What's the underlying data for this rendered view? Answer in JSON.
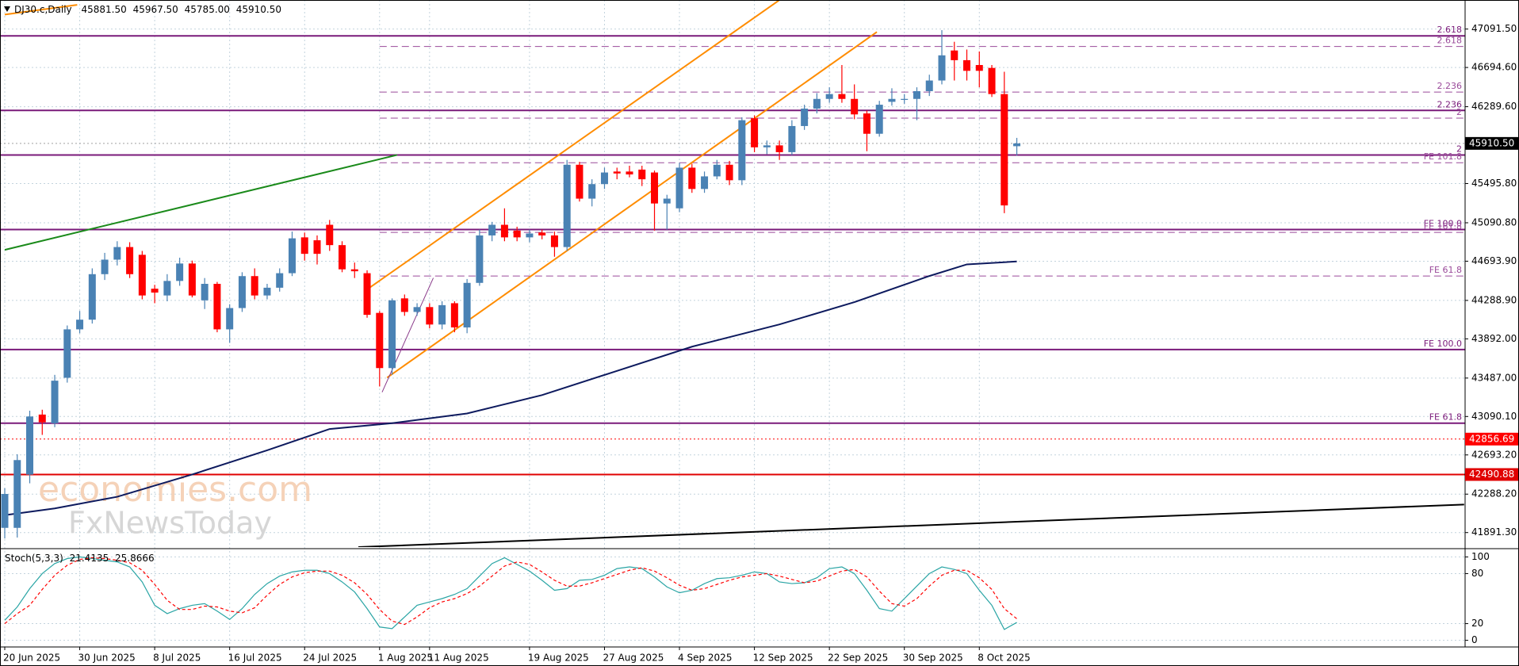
{
  "chart_data": [
    {
      "type": "candlestick",
      "symbol": "DJ30.c,Daily",
      "ohlc_labels": [
        "45881.50",
        "45967.50",
        "45785.00",
        "45910.50"
      ],
      "categories": [
        "20 Jun 2025",
        null,
        null,
        null,
        null,
        null,
        "30 Jun 2025",
        null,
        null,
        null,
        null,
        null,
        "8 Jul 2025",
        null,
        null,
        null,
        null,
        null,
        "16 Jul 2025",
        null,
        null,
        null,
        null,
        null,
        "24 Jul 2025",
        null,
        null,
        null,
        null,
        null,
        "1 Aug 2025",
        null,
        null,
        null,
        "11 Aug 2025",
        null,
        null,
        null,
        null,
        null,
        null,
        null,
        "19 Aug 2025",
        null,
        null,
        null,
        null,
        null,
        "27 Aug 2025",
        null,
        null,
        null,
        null,
        null,
        "4 Sep 2025",
        null,
        null,
        null,
        null,
        null,
        "12 Sep 2025",
        null,
        null,
        null,
        null,
        null,
        "22 Sep 2025",
        null,
        null,
        null,
        null,
        null,
        "30 Sep 2025",
        null,
        null,
        null,
        null,
        null,
        "8 Oct 2025",
        null,
        null,
        null
      ],
      "open": [
        41940,
        41940,
        42490,
        43110,
        43020,
        43490,
        43990,
        44090,
        44560,
        44710,
        44840,
        44760,
        44410,
        44340,
        44490,
        44670,
        44290,
        44460,
        43990,
        44210,
        44540,
        44340,
        44420,
        44570,
        44940,
        44910,
        45070,
        44860,
        44610,
        44570,
        44160,
        43590,
        44310,
        44170,
        44220,
        44040,
        44260,
        44010,
        44470,
        44960,
        45070,
        45010,
        44940,
        44990,
        44960,
        44840,
        45690,
        45340,
        45490,
        45620,
        45620,
        45640,
        45610,
        45290,
        45240,
        45660,
        45440,
        45570,
        45690,
        45530,
        46170,
        45870,
        45890,
        45820,
        46090,
        46270,
        46370,
        46420,
        46370,
        46220,
        46010,
        46340,
        46360,
        46370,
        46450,
        46560,
        46870,
        46770,
        46720,
        46690,
        46420,
        45881.5
      ],
      "high": [
        42350,
        42700,
        43150,
        43160,
        43520,
        44030,
        44180,
        44620,
        44780,
        44900,
        44890,
        44800,
        44450,
        44560,
        44730,
        44700,
        44520,
        44480,
        44250,
        44580,
        44620,
        44460,
        44620,
        45000,
        44990,
        44960,
        45120,
        44900,
        44680,
        44600,
        44180,
        44310,
        44350,
        44260,
        44260,
        44280,
        44280,
        44510,
        45020,
        45100,
        45240,
        45050,
        45020,
        45020,
        45000,
        45740,
        45720,
        45540,
        45660,
        45660,
        45680,
        45680,
        45630,
        45380,
        45710,
        45700,
        45620,
        45740,
        45730,
        46180,
        46200,
        45940,
        45940,
        46150,
        46310,
        46430,
        46490,
        46720,
        46520,
        46250,
        46350,
        46480,
        46420,
        46490,
        46620,
        47080,
        46960,
        46880,
        46860,
        46720,
        46650,
        45967.5
      ],
      "low": [
        41830,
        41840,
        42400,
        42900,
        42980,
        43440,
        43950,
        44050,
        44500,
        44650,
        44520,
        44300,
        44260,
        44280,
        44440,
        44320,
        44200,
        43960,
        43850,
        44170,
        44300,
        44300,
        44380,
        44540,
        44700,
        44660,
        44800,
        44580,
        44520,
        44110,
        43400,
        43520,
        44130,
        44130,
        44000,
        43990,
        43960,
        43950,
        44440,
        44900,
        44900,
        44900,
        44890,
        44920,
        44740,
        44800,
        45310,
        45260,
        45440,
        45540,
        45560,
        45470,
        45010,
        45020,
        45200,
        45400,
        45400,
        45540,
        45480,
        45480,
        45820,
        45800,
        45740,
        45790,
        46050,
        46220,
        46330,
        46330,
        46160,
        45830,
        45980,
        46300,
        46320,
        46150,
        46400,
        46520,
        46560,
        46560,
        46490,
        46390,
        45190,
        45785
      ],
      "close": [
        42290,
        42640,
        43090,
        43030,
        43460,
        43990,
        44090,
        44560,
        44710,
        44840,
        44560,
        44340,
        44370,
        44490,
        44670,
        44340,
        44460,
        43990,
        44210,
        44540,
        44340,
        44420,
        44570,
        44930,
        44770,
        44770,
        44860,
        44610,
        44590,
        44140,
        43590,
        44290,
        44170,
        44220,
        44040,
        44240,
        44010,
        44470,
        44960,
        45070,
        44940,
        44940,
        44980,
        44960,
        44840,
        45690,
        45340,
        45490,
        45610,
        45600,
        45590,
        45540,
        45290,
        45340,
        45660,
        45440,
        45570,
        45690,
        45530,
        46150,
        45870,
        45890,
        45820,
        46090,
        46270,
        46370,
        46420,
        46370,
        46210,
        46010,
        46310,
        46370,
        46370,
        46450,
        46560,
        46820,
        46770,
        46660,
        46660,
        46420,
        45270,
        45910.5
      ],
      "up_color": "#4a82b4",
      "down_color": "#ff0000",
      "ylim": [
        41741.5,
        47391.5
      ],
      "yticks": [
        {
          "value": 47091.5,
          "label": "47091.50"
        },
        {
          "value": 46694.6,
          "label": "46694.60"
        },
        {
          "value": 46289.6,
          "label": "46289.60"
        },
        {
          "value": 45495.8,
          "label": "45495.80"
        },
        {
          "value": 45090.8,
          "label": "45090.80"
        },
        {
          "value": 44693.9,
          "label": "44693.90"
        },
        {
          "value": 44288.9,
          "label": "44288.90"
        },
        {
          "value": 43892,
          "label": "43892.00"
        },
        {
          "value": 43487,
          "label": "43487.00"
        },
        {
          "value": 43090.1,
          "label": "43090.10"
        },
        {
          "value": 42693.2,
          "label": "42693.20"
        },
        {
          "value": 42288.2,
          "label": "42288.20"
        },
        {
          "value": 41891.3,
          "label": "41891.30"
        }
      ],
      "grid": true,
      "moving_average": {
        "color": "#0d1a5e",
        "x": [
          0,
          4,
          9,
          15,
          21,
          26,
          31,
          37,
          43,
          49,
          55,
          62,
          68,
          74,
          77,
          81
        ],
        "values": [
          42071,
          42141,
          42261,
          42491,
          42741,
          42961,
          43021,
          43121,
          43311,
          43561,
          43811,
          44041,
          44271,
          44541,
          44661,
          44691
        ]
      },
      "trendlines": [
        {
          "color": "#ff8c00",
          "x": [
            29.1,
            62
          ],
          "values": [
            44411,
            47391
          ]
        },
        {
          "color": "#ff8c00",
          "x": [
            30.6,
            69.8
          ],
          "values": [
            43491,
            47061
          ]
        },
        {
          "color": "#ff8c00",
          "x": [
            0,
            5.8
          ],
          "values": [
            47241,
            47341
          ]
        },
        {
          "color": "#1a8a1a",
          "x": [
            0,
            31.4
          ],
          "values": [
            44811,
            45791
          ]
        },
        {
          "color": "#000000",
          "x": [
            28.3,
            116.8
          ],
          "values": [
            41741,
            42181
          ]
        },
        {
          "color": "#8a3a8a",
          "x": [
            30.2,
            34.3
          ],
          "values": [
            43341,
            44521
          ]
        }
      ],
      "levels": [
        {
          "value": 47021,
          "label": "2.618",
          "style": "solid",
          "color": "#7a1a7a"
        },
        {
          "value": 46911,
          "label": "2.618",
          "style": "dashed",
          "color": "#9a4a9a",
          "x_start": 30
        },
        {
          "value": 46441,
          "label": "2.236",
          "style": "dashed",
          "color": "#9a4a9a",
          "x_start": 30
        },
        {
          "value": 46251,
          "label": "2.236",
          "style": "solid",
          "color": "#7a1a7a"
        },
        {
          "value": 46171,
          "label": "2",
          "style": "dashed",
          "color": "#9a4a9a",
          "x_start": 30
        },
        {
          "value": 45791,
          "label": "2",
          "style": "solid",
          "color": "#7a1a7a"
        },
        {
          "value": 45711,
          "label": "FE 101.8",
          "style": "dashed",
          "color": "#9a4a9a",
          "x_start": 30
        },
        {
          "value": 45021,
          "label": "FE 100.0",
          "style": "solid",
          "color": "#7a1a7a"
        },
        {
          "value": 44991,
          "label": "FE 161.8",
          "style": "dashed",
          "color": "#9a4a9a",
          "x_start": 30
        },
        {
          "value": 44541,
          "label": "FE 61.8",
          "style": "dashed",
          "color": "#9a4a9a",
          "x_start": 30
        },
        {
          "value": 43781,
          "label": "FE 100.0",
          "style": "solid",
          "color": "#7a1a7a"
        },
        {
          "value": 43021,
          "label": "FE 61.8",
          "style": "solid",
          "color": "#7a1a7a"
        }
      ],
      "price_marks": [
        {
          "value": 42856.69,
          "style": "dotted",
          "color": "#ff0000"
        },
        {
          "value": 42490.88,
          "style": "solid",
          "color": "#e00000"
        }
      ],
      "watermark": [
        "economies.com",
        "FxNewsToday"
      ]
    },
    {
      "type": "stochastic",
      "title": "Stoch(5,3,3)",
      "series": [
        {
          "color": "#2aa5a5",
          "values": [
            24,
            40,
            62,
            80,
            92,
            98,
            100,
            98,
            96,
            94,
            88,
            70,
            42,
            32,
            38,
            42,
            44,
            35,
            25,
            38,
            55,
            68,
            77,
            82,
            84,
            84,
            80,
            70,
            58,
            38,
            16,
            14,
            28,
            42,
            46,
            50,
            55,
            62,
            77,
            92,
            99,
            91,
            83,
            72,
            60,
            62,
            72,
            73,
            78,
            86,
            88,
            86,
            76,
            64,
            57,
            60,
            68,
            74,
            75,
            78,
            82,
            80,
            70,
            68,
            69,
            75,
            86,
            88,
            80,
            60,
            38,
            35,
            50,
            65,
            80,
            88,
            85,
            80,
            60,
            42,
            13,
            21.4135
          ]
        },
        {
          "color": "#ff0000",
          "values": [
            20,
            32,
            42,
            61,
            78,
            90,
            97,
            99,
            98,
            96,
            93,
            84,
            67,
            48,
            37,
            37,
            41,
            40,
            35,
            33,
            39,
            54,
            67,
            76,
            81,
            83,
            83,
            78,
            69,
            55,
            37,
            23,
            19,
            28,
            39,
            46,
            50,
            56,
            65,
            77,
            89,
            94,
            91,
            82,
            72,
            65,
            65,
            69,
            74,
            79,
            84,
            87,
            83,
            75,
            66,
            60,
            62,
            67,
            72,
            76,
            78,
            80,
            77,
            73,
            69,
            71,
            77,
            83,
            85,
            76,
            59,
            44,
            41,
            50,
            65,
            78,
            84,
            84,
            75,
            61,
            38,
            25.8666
          ]
        }
      ],
      "ylim": [
        -8,
        108
      ],
      "yticks": [
        100,
        80,
        20,
        0
      ],
      "grid": true
    }
  ]
}
